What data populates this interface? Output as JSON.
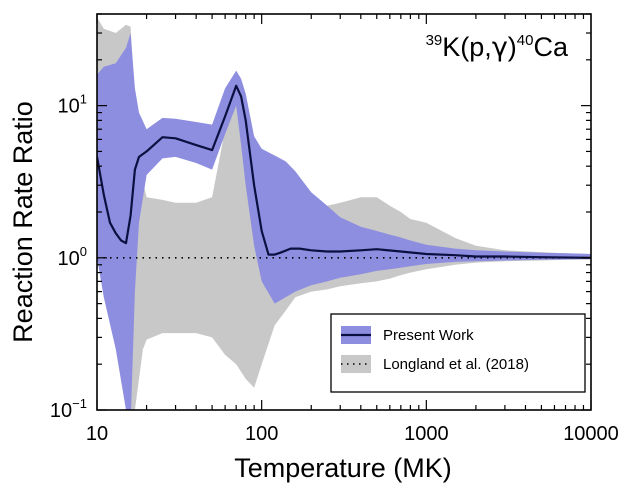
{
  "chart_data": {
    "type": "area",
    "title": "",
    "annotation": {
      "mass_top": "39",
      "base_left": "K(p,",
      "gamma": "γ",
      "base_mid": ")",
      "mass_right": "40",
      "base_right": "Ca"
    },
    "xlabel": "Temperature (MK)",
    "ylabel": "Reaction Rate Ratio",
    "x_scale": "log",
    "y_scale": "log",
    "xlim": [
      10,
      10000
    ],
    "ylim": [
      0.1,
      40
    ],
    "x_ticks": [
      {
        "value": 10,
        "label": "10"
      },
      {
        "value": 100,
        "label": "100"
      },
      {
        "value": 1000,
        "label": "1000"
      },
      {
        "value": 10000,
        "label": "10000"
      }
    ],
    "y_ticks": [
      {
        "value": 0.1,
        "base": "10",
        "exp": "−1"
      },
      {
        "value": 1,
        "base": "10",
        "exp": "0"
      },
      {
        "value": 10,
        "base": "10",
        "exp": "1"
      }
    ],
    "colors": {
      "gray_band": "#c8c8c8",
      "blue_band": "#8e8ee0",
      "line": "#0c1040",
      "reference": "#000000"
    },
    "legend": {
      "position": "bottom-right",
      "entries": [
        {
          "label": "Present Work",
          "style": "blue-band-with-line"
        },
        {
          "label": "Longland et al. (2018)",
          "style": "gray-band-with-dotted"
        }
      ]
    },
    "series": [
      {
        "name": "Longland et al. (2018)",
        "kind": "band",
        "x": [
          10,
          11,
          13,
          15,
          16,
          17,
          19,
          20,
          25,
          30,
          40,
          50,
          60,
          70,
          80,
          90,
          100,
          120,
          140,
          160,
          200,
          250,
          300,
          400,
          500,
          600,
          700,
          800,
          1000,
          1500,
          2000,
          3000,
          5000,
          7000,
          10000
        ],
        "upper": [
          38,
          32,
          30,
          34,
          33,
          10,
          3.2,
          2.5,
          2.4,
          2.3,
          2.3,
          2.5,
          7,
          13,
          11,
          3.8,
          1.5,
          1.3,
          1.4,
          1.9,
          2.1,
          2.2,
          2.3,
          2.5,
          2.5,
          2.2,
          2.0,
          1.8,
          1.7,
          1.35,
          1.2,
          1.12,
          1.09,
          1.07,
          1.06
        ],
        "lower": [
          1.0,
          0.6,
          0.35,
          0.15,
          0.1,
          0.1,
          0.25,
          0.29,
          0.32,
          0.32,
          0.32,
          0.3,
          0.23,
          0.2,
          0.16,
          0.14,
          0.2,
          0.36,
          0.45,
          0.55,
          0.6,
          0.62,
          0.65,
          0.68,
          0.7,
          0.73,
          0.77,
          0.8,
          0.84,
          0.9,
          0.93,
          0.95,
          0.96,
          0.97,
          0.975
        ]
      },
      {
        "name": "Present Work",
        "kind": "band",
        "x": [
          10,
          11,
          13,
          15,
          16,
          17,
          18,
          20,
          25,
          30,
          40,
          50,
          60,
          70,
          75,
          80,
          90,
          100,
          120,
          140,
          160,
          200,
          250,
          300,
          400,
          500,
          600,
          700,
          800,
          1000,
          1500,
          2000,
          3000,
          5000,
          7000,
          10000
        ],
        "upper": [
          16,
          18,
          19,
          24,
          30,
          13,
          9,
          7,
          8.3,
          8.2,
          7.8,
          7.5,
          13,
          17,
          15,
          12,
          6.3,
          5.2,
          4.7,
          4.3,
          3.7,
          2.7,
          2.2,
          1.85,
          1.6,
          1.5,
          1.42,
          1.36,
          1.3,
          1.22,
          1.15,
          1.12,
          1.1,
          1.08,
          1.07,
          1.06
        ],
        "lower": [
          1.0,
          0.55,
          0.25,
          0.1,
          0.08,
          0.6,
          1.7,
          3.5,
          4.5,
          4.6,
          4.2,
          3.8,
          6.5,
          10,
          5.5,
          3,
          1.2,
          0.7,
          0.5,
          0.55,
          0.6,
          0.66,
          0.7,
          0.74,
          0.78,
          0.82,
          0.84,
          0.86,
          0.88,
          0.91,
          0.94,
          0.95,
          0.96,
          0.97,
          0.975,
          0.98
        ]
      },
      {
        "name": "Present Work",
        "kind": "line",
        "x": [
          10,
          11,
          12,
          13,
          14,
          15,
          16,
          17,
          18,
          20,
          25,
          30,
          40,
          50,
          60,
          70,
          75,
          80,
          90,
          100,
          110,
          120,
          130,
          150,
          170,
          200,
          250,
          300,
          400,
          500,
          700,
          1000,
          1500,
          2000,
          3000,
          5000,
          10000
        ],
        "y": [
          4.6,
          2.6,
          1.7,
          1.45,
          1.3,
          1.25,
          1.9,
          3.8,
          4.6,
          5.0,
          6.2,
          6.1,
          5.5,
          5.1,
          8.5,
          13.5,
          11.5,
          8.0,
          3.0,
          1.5,
          1.05,
          1.05,
          1.08,
          1.15,
          1.15,
          1.12,
          1.1,
          1.1,
          1.12,
          1.14,
          1.1,
          1.06,
          1.04,
          1.02,
          1.02,
          1.01,
          1.0
        ]
      },
      {
        "name": "Longland et al. (2018)",
        "kind": "reference",
        "x": [
          10,
          10000
        ],
        "y": [
          1,
          1
        ]
      }
    ]
  }
}
